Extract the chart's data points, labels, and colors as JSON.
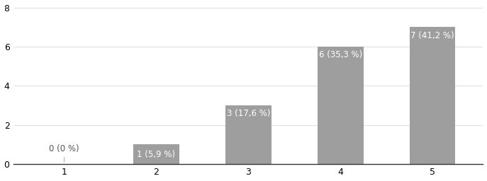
{
  "categories": [
    1,
    2,
    3,
    4,
    5
  ],
  "values": [
    0,
    1,
    3,
    6,
    7
  ],
  "labels": [
    "0 (0 %)",
    "1 (5,9 %)",
    "3 (17,6 %)",
    "6 (35,3 %)",
    "7 (41,2 %)"
  ],
  "bar_color": "#9E9E9E",
  "ylim": [
    0,
    8
  ],
  "yticks": [
    0,
    2,
    4,
    6,
    8
  ],
  "xticks": [
    1,
    2,
    3,
    4,
    5
  ],
  "label_color_inside": "white",
  "label_color_outside": "#555555",
  "label_fontsize": 8.5,
  "tick_fontsize": 9,
  "background_color": "#ffffff",
  "bar_width": 0.5,
  "grid_color": "#dddddd",
  "spine_color": "#333333"
}
